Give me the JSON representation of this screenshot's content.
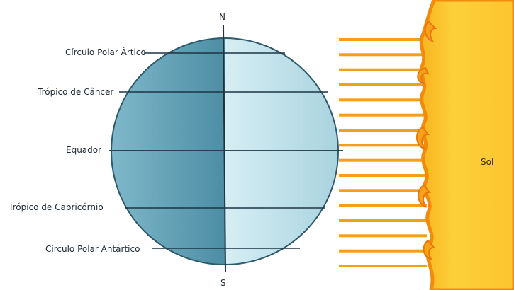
{
  "labels": {
    "arctic_circle": "Círculo Polar Ártico",
    "tropic_cancer": "Trópico de Câncer",
    "equator": "Equador",
    "tropic_capricorn": "Trópico de Capricórnio",
    "antarctic_circle": "Círculo Polar Antártico"
  },
  "poles": {
    "north": "N",
    "south": "S"
  },
  "sun": {
    "label": "Sol"
  },
  "colors": {
    "earth_dark": "#5f9fb5",
    "earth_light": "#c3e4ec",
    "earth_outline": "#2f5a6c",
    "lines": "#1c3444",
    "rays": "#f2a019",
    "sun_core": "#fbc42a",
    "sun_edge": "#f28a0c"
  },
  "ray_count": 16
}
